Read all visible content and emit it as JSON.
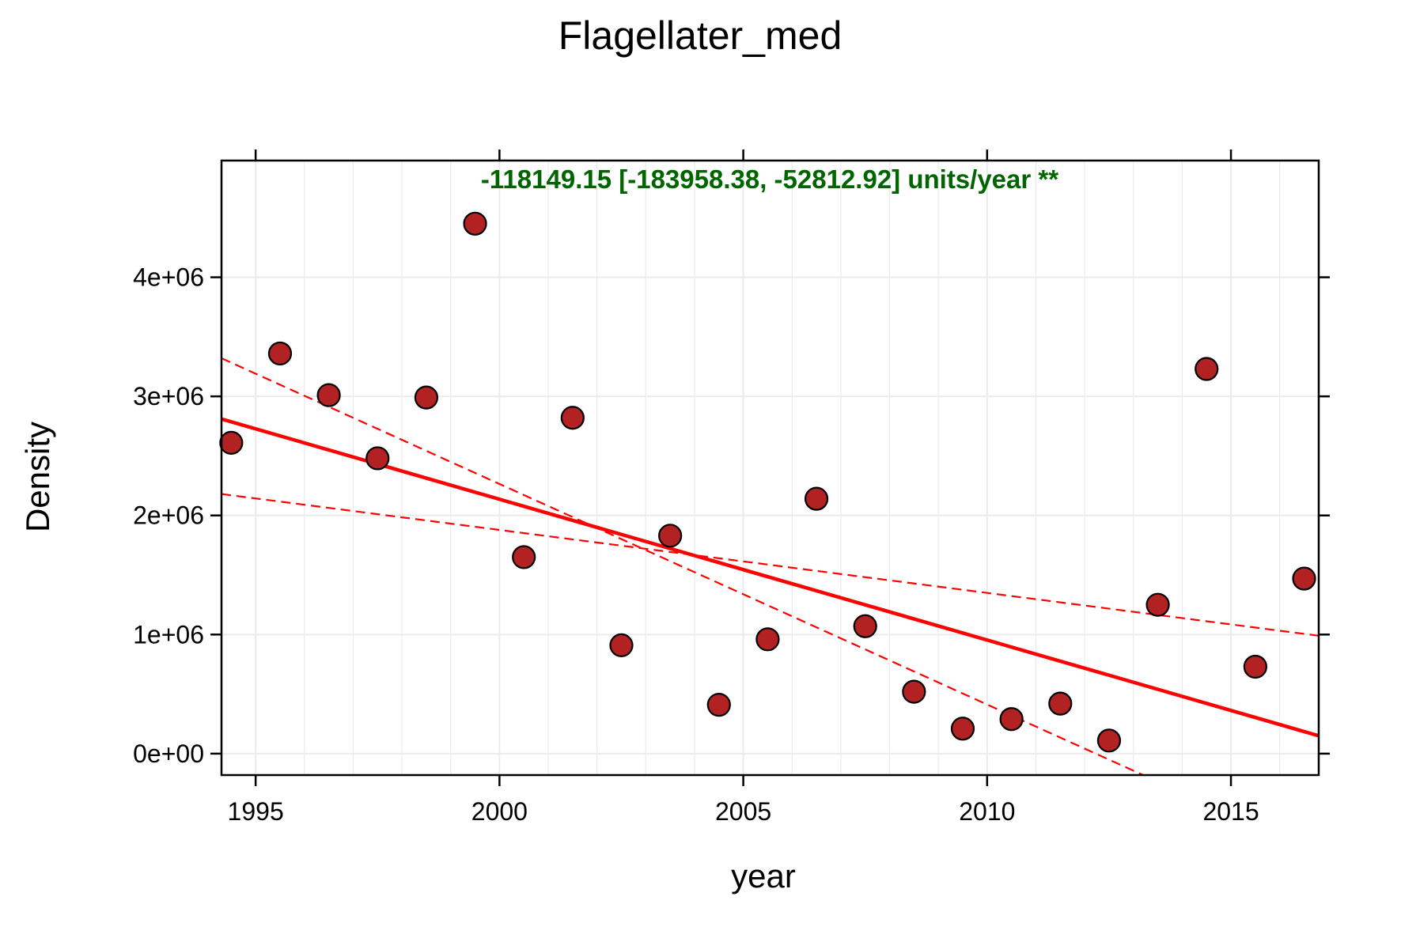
{
  "chart_data": {
    "type": "scatter",
    "title": "Flagellater_med",
    "xlabel": "year",
    "ylabel": "Density",
    "annotation": "-118149.15 [-183958.38, -52812.92] units/year **",
    "xlim": [
      1994.3,
      2016.8
    ],
    "ylim": [
      -180000,
      4980000
    ],
    "x_ticks": [
      1995,
      2000,
      2005,
      2010,
      2015
    ],
    "x_tick_labels": [
      "1995",
      "2000",
      "2005",
      "2010",
      "2015"
    ],
    "y_ticks": [
      0,
      1000000,
      2000000,
      3000000,
      4000000
    ],
    "y_tick_labels": [
      "0e+00",
      "1e+06",
      "2e+06",
      "3e+06",
      "4e+06"
    ],
    "grid": true,
    "points": {
      "x": [
        1994.5,
        1995.5,
        1996.5,
        1997.5,
        1998.5,
        1999.5,
        2000.5,
        2001.5,
        2002.5,
        2003.5,
        2004.5,
        2005.5,
        2006.5,
        2007.5,
        2008.5,
        2009.5,
        2010.5,
        2011.5,
        2012.5,
        2013.5,
        2014.5,
        2015.5,
        2016.5
      ],
      "y": [
        2610000,
        3360000,
        3010000,
        2480000,
        2990000,
        4450000,
        1650000,
        2820000,
        910000,
        1830000,
        410000,
        960000,
        2140000,
        1070000,
        520000,
        210000,
        290000,
        420000,
        110000,
        1250000,
        3230000,
        730000,
        1470000
      ]
    },
    "trend_line": {
      "x": [
        1994.3,
        2016.8
      ],
      "y": [
        2810000,
        150000
      ]
    },
    "ci_lines": [
      {
        "x": [
          1994.3,
          2013.2
        ],
        "y": [
          3320000,
          -180000
        ]
      },
      {
        "x": [
          1994.3,
          2016.8
        ],
        "y": [
          2180000,
          990000
        ]
      }
    ],
    "colors": {
      "point_fill": "#b22222",
      "point_stroke": "#000000",
      "trend": "#ff0000",
      "annotation": "#006400",
      "grid": "#ebebeb"
    }
  }
}
